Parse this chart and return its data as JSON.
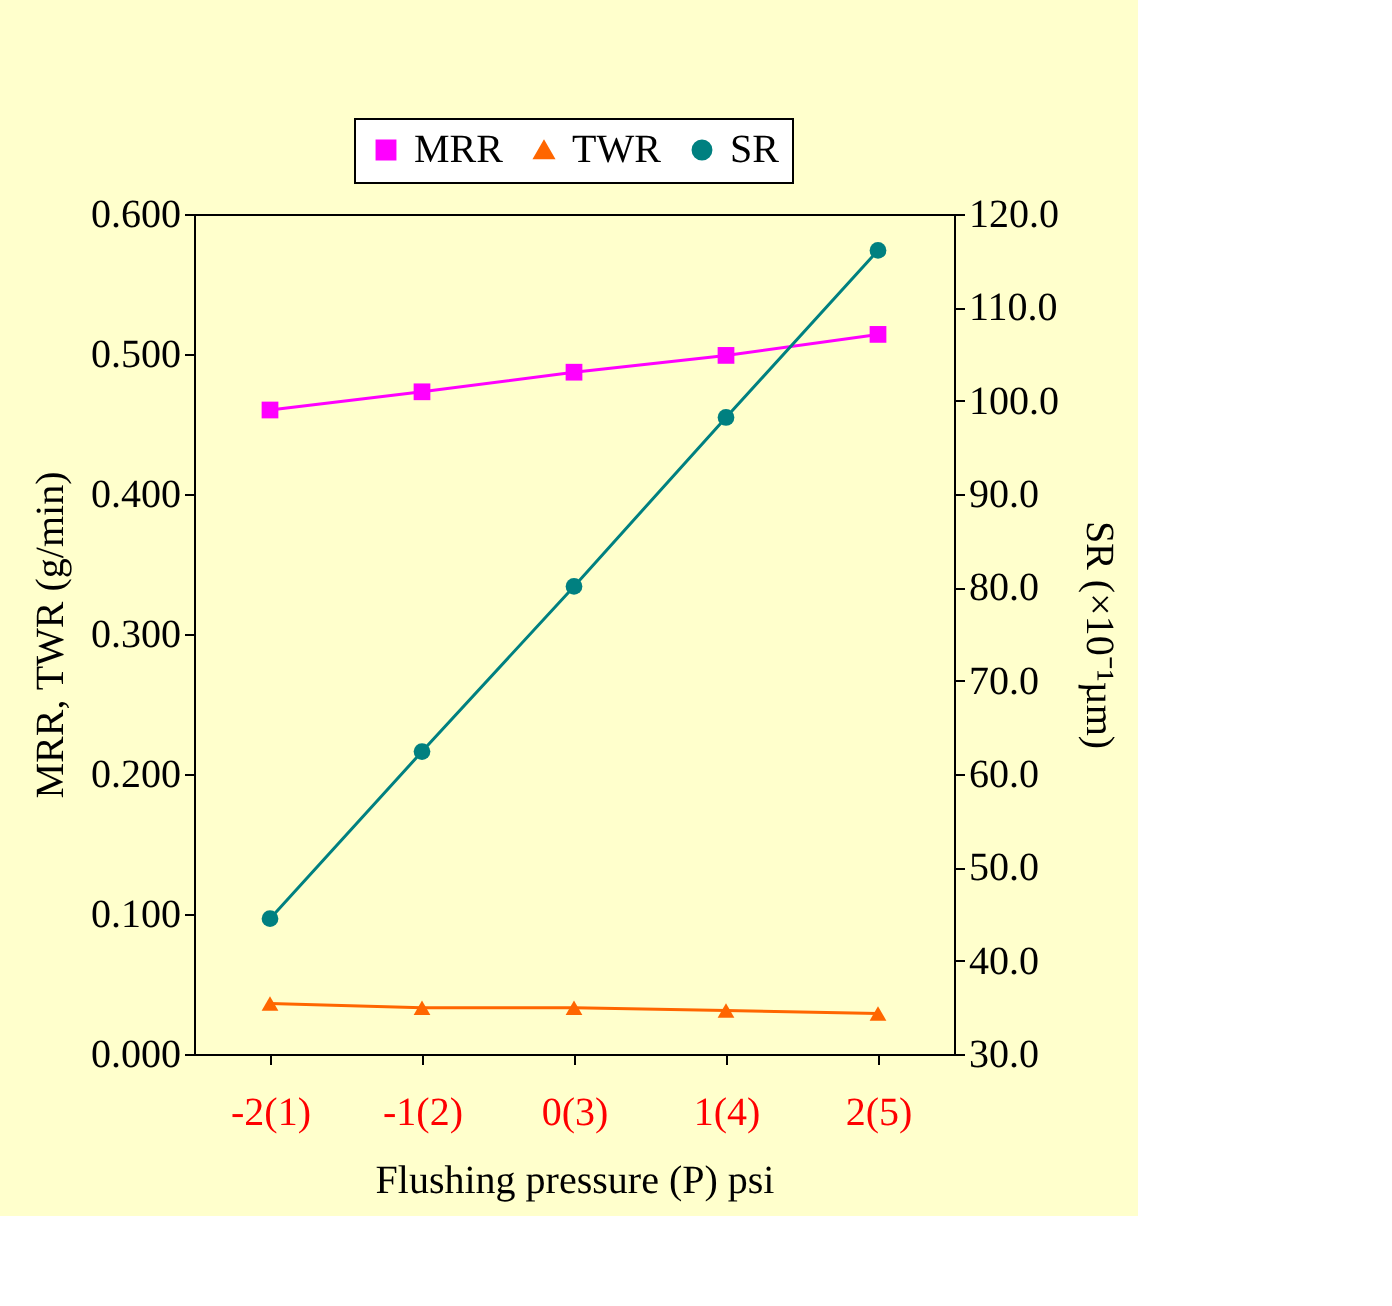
{
  "chart_data": {
    "type": "line",
    "categories": [
      "-2(1)",
      "-1(2)",
      "0(3)",
      "1(4)",
      "2(5)"
    ],
    "xlabel": "Flushing pressure (P) psi",
    "ylabel": "MRR,  TWR (g/min)",
    "y2label": "SR (×10⁻¹µm)",
    "ylim": [
      0,
      0.6
    ],
    "yticks": [
      {
        "value": 0,
        "label": "0.000"
      },
      {
        "value": 0.1,
        "label": "0.100"
      },
      {
        "value": 0.2,
        "label": "0.200"
      },
      {
        "value": 0.3,
        "label": "0.300"
      },
      {
        "value": 0.4,
        "label": "0.400"
      },
      {
        "value": 0.5,
        "label": "0.500"
      },
      {
        "value": 0.6,
        "label": "0.600"
      }
    ],
    "y2lim": [
      30,
      120
    ],
    "y2ticks": [
      {
        "value": 30,
        "label": "30.0"
      },
      {
        "value": 40,
        "label": "40.0"
      },
      {
        "value": 50,
        "label": "50.0"
      },
      {
        "value": 60,
        "label": "60.0"
      },
      {
        "value": 70,
        "label": "70.0"
      },
      {
        "value": 80,
        "label": "80.0"
      },
      {
        "value": 90,
        "label": "90.0"
      },
      {
        "value": 100,
        "label": "100.0"
      },
      {
        "value": 110,
        "label": "110.0"
      },
      {
        "value": 120,
        "label": "120.0"
      }
    ],
    "series": [
      {
        "name": "MRR",
        "color": "#ff00ff",
        "marker": "square",
        "values": [
          0.46,
          0.473,
          0.487,
          0.499,
          0.514
        ]
      },
      {
        "name": "TWR",
        "color": "#ff6600",
        "marker": "triangle",
        "values": [
          0.036,
          0.033,
          0.033,
          0.031,
          0.029
        ]
      },
      {
        "name": "SR",
        "color": "#008080",
        "marker": "circle",
        "axis": "y2",
        "values": [
          44.5,
          62.4,
          80.1,
          98.2,
          116.1
        ]
      }
    ],
    "grid": false,
    "legend": "top"
  }
}
